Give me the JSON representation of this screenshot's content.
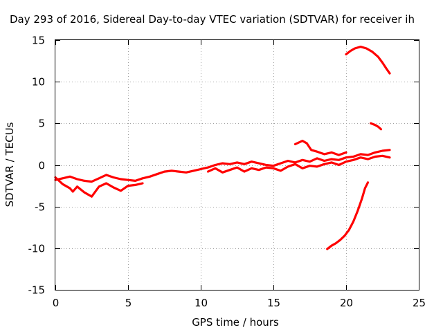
{
  "chart_data": {
    "type": "scatter",
    "title": "Day 293 of 2016, Sidereal Day-to-day VTEC variation (SDTVAR) for receiver ih",
    "xlabel": "GPS time / hours",
    "ylabel": "SDTVAR / TECUs",
    "xlim": [
      0,
      25
    ],
    "ylim": [
      -15,
      15
    ],
    "xticks": [
      "0",
      "5",
      "10",
      "15",
      "20",
      "25"
    ],
    "yticks": [
      "-15",
      "-10",
      "-5",
      "0",
      "5",
      "10",
      "15"
    ],
    "grid": true,
    "marker_color": "#ff0000",
    "series": [
      {
        "values": [
          [
            0,
            -1.8
          ],
          [
            0.5,
            -1.6
          ],
          [
            1.0,
            -1.4
          ],
          [
            1.5,
            -1.7
          ],
          [
            2.0,
            -1.9
          ],
          [
            2.5,
            -2.0
          ],
          [
            3.0,
            -1.6
          ],
          [
            3.5,
            -1.2
          ],
          [
            4.0,
            -1.5
          ],
          [
            4.5,
            -1.7
          ],
          [
            5.0,
            -1.8
          ],
          [
            5.5,
            -1.9
          ],
          [
            6.0,
            -1.6
          ],
          [
            6.5,
            -1.4
          ],
          [
            7.0,
            -1.1
          ],
          [
            7.5,
            -0.8
          ],
          [
            8.0,
            -0.7
          ],
          [
            8.5,
            -0.8
          ],
          [
            9.0,
            -0.9
          ],
          [
            9.5,
            -0.7
          ],
          [
            10.0,
            -0.5
          ],
          [
            10.5,
            -0.3
          ],
          [
            11.0,
            0.0
          ],
          [
            11.5,
            0.2
          ],
          [
            12.0,
            0.1
          ],
          [
            12.5,
            0.3
          ],
          [
            13.0,
            0.1
          ],
          [
            13.5,
            0.4
          ],
          [
            14.0,
            0.2
          ],
          [
            14.5,
            0.0
          ],
          [
            15.0,
            -0.1
          ],
          [
            15.5,
            0.2
          ],
          [
            16.0,
            0.5
          ],
          [
            16.5,
            0.3
          ],
          [
            17.0,
            0.6
          ],
          [
            17.5,
            0.4
          ],
          [
            18.0,
            0.8
          ],
          [
            18.5,
            0.5
          ],
          [
            19.0,
            0.7
          ],
          [
            19.5,
            0.6
          ],
          [
            20.0,
            0.9
          ],
          [
            20.5,
            1.0
          ],
          [
            21.0,
            1.3
          ],
          [
            21.5,
            1.2
          ],
          [
            22.0,
            1.5
          ],
          [
            22.5,
            1.7
          ],
          [
            23.0,
            1.8
          ]
        ]
      },
      {
        "values": [
          [
            0,
            -1.5
          ],
          [
            0.5,
            -2.3
          ],
          [
            1.0,
            -2.8
          ],
          [
            1.2,
            -3.2
          ],
          [
            1.5,
            -2.6
          ],
          [
            2.0,
            -3.3
          ],
          [
            2.5,
            -3.8
          ],
          [
            3.0,
            -2.6
          ],
          [
            3.5,
            -2.2
          ],
          [
            4.0,
            -2.7
          ],
          [
            4.5,
            -3.1
          ],
          [
            5.0,
            -2.5
          ],
          [
            5.5,
            -2.4
          ],
          [
            6.0,
            -2.2
          ]
        ]
      },
      {
        "values": [
          [
            10.5,
            -0.8
          ],
          [
            11.0,
            -0.4
          ],
          [
            11.5,
            -0.9
          ],
          [
            12.0,
            -0.6
          ],
          [
            12.5,
            -0.3
          ],
          [
            13.0,
            -0.8
          ],
          [
            13.5,
            -0.4
          ],
          [
            14.0,
            -0.6
          ],
          [
            14.5,
            -0.3
          ],
          [
            15.0,
            -0.4
          ],
          [
            15.5,
            -0.7
          ],
          [
            16.0,
            -0.2
          ],
          [
            16.5,
            0.1
          ],
          [
            17.0,
            -0.4
          ],
          [
            17.5,
            -0.1
          ],
          [
            18.0,
            -0.2
          ],
          [
            18.5,
            0.1
          ],
          [
            19.0,
            0.3
          ],
          [
            19.5,
            0.0
          ],
          [
            20.0,
            0.4
          ],
          [
            20.5,
            0.6
          ],
          [
            21.0,
            0.9
          ],
          [
            21.5,
            0.7
          ],
          [
            22.0,
            1.0
          ],
          [
            22.5,
            1.1
          ],
          [
            23.0,
            0.9
          ]
        ]
      },
      {
        "values": [
          [
            16.5,
            2.5
          ],
          [
            17.0,
            2.9
          ],
          [
            17.3,
            2.6
          ],
          [
            17.6,
            1.8
          ],
          [
            18.0,
            1.6
          ],
          [
            18.5,
            1.3
          ],
          [
            19.0,
            1.5
          ],
          [
            19.5,
            1.2
          ],
          [
            20.0,
            1.5
          ]
        ]
      },
      {
        "values": [
          [
            20.0,
            13.3
          ],
          [
            20.3,
            13.7
          ],
          [
            20.6,
            14.0
          ],
          [
            21.0,
            14.2
          ],
          [
            21.4,
            14.0
          ],
          [
            21.8,
            13.6
          ],
          [
            22.2,
            13.0
          ],
          [
            22.5,
            12.3
          ],
          [
            22.8,
            11.5
          ],
          [
            23.0,
            11.0
          ]
        ]
      },
      {
        "values": [
          [
            21.7,
            5.0
          ],
          [
            22.0,
            4.8
          ],
          [
            22.2,
            4.6
          ],
          [
            22.4,
            4.3
          ]
        ]
      },
      {
        "values": [
          [
            18.7,
            -10.1
          ],
          [
            19.0,
            -9.7
          ],
          [
            19.3,
            -9.4
          ],
          [
            19.6,
            -9.0
          ],
          [
            19.9,
            -8.5
          ],
          [
            20.2,
            -7.8
          ],
          [
            20.5,
            -6.8
          ],
          [
            20.8,
            -5.5
          ],
          [
            21.1,
            -4.0
          ],
          [
            21.3,
            -2.8
          ],
          [
            21.5,
            -2.1
          ]
        ]
      }
    ]
  }
}
